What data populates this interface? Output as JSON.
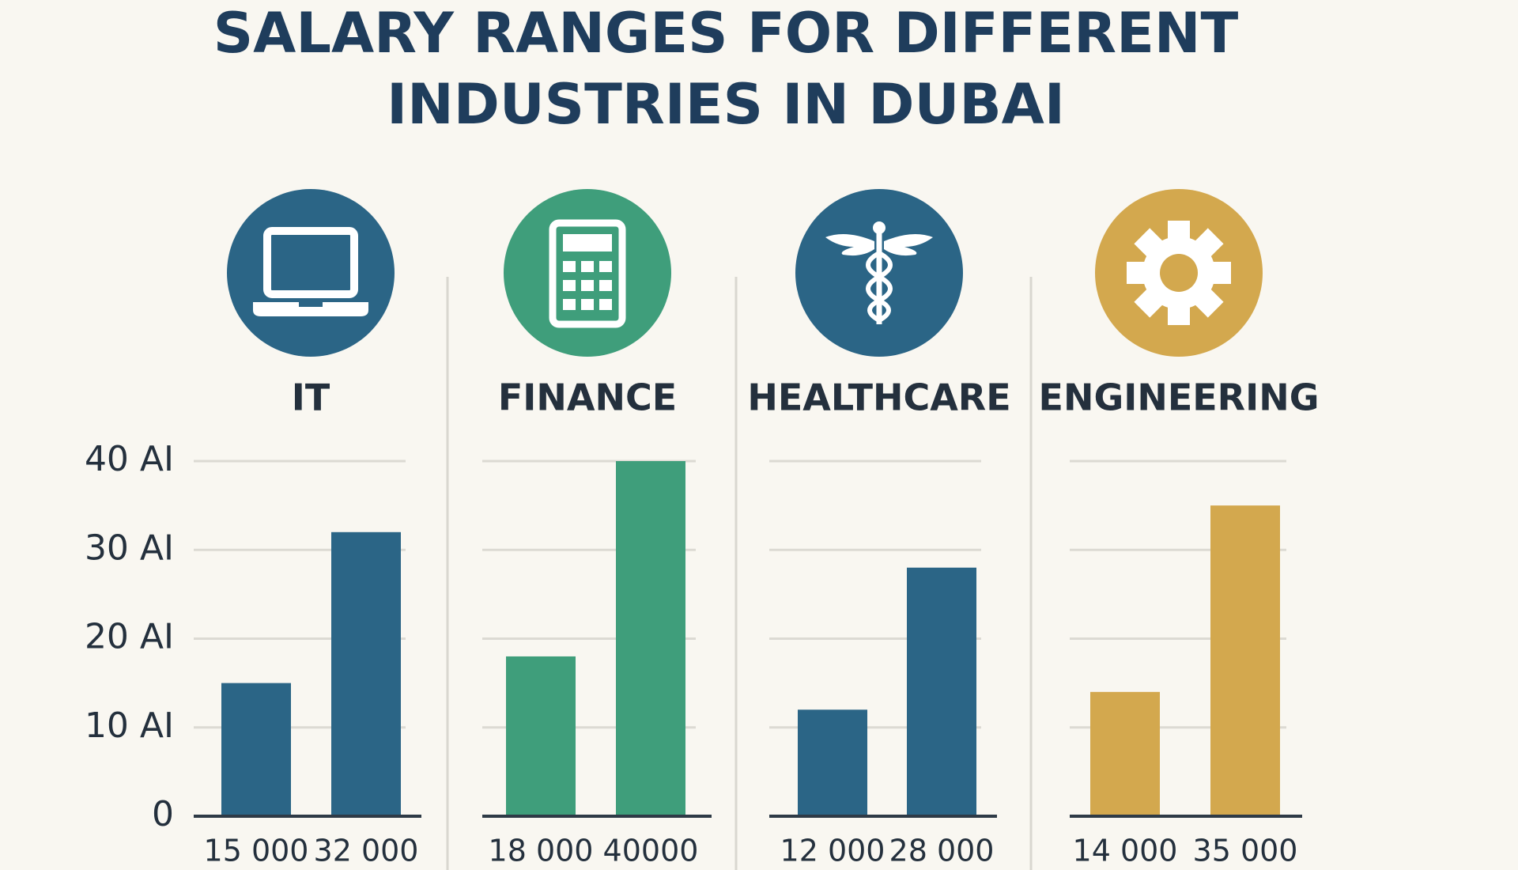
{
  "chart_data": {
    "type": "bar",
    "title": [
      "SALARY RANGES FOR DIFFERENT",
      "INDUSTRIES IN DUBAI"
    ],
    "categories": [
      "IT",
      "FINANCE",
      "HEALTHCARE",
      "ENGINEERING"
    ],
    "colors": [
      "#2b6586",
      "#3f9e7b",
      "#2b6586",
      "#d3a84e"
    ],
    "series": [
      {
        "values": [
          15,
          18,
          12,
          14
        ],
        "value_labels": [
          "15 000",
          "18 000",
          "12 000",
          "14 000"
        ]
      },
      {
        "values": [
          32,
          40,
          28,
          35
        ],
        "value_labels": [
          "32 000",
          "40000",
          "28 000",
          "35 000"
        ]
      }
    ],
    "ylim": [
      0,
      40
    ],
    "yticks": [
      0,
      {
        "value": 10,
        "label": "10 AI"
      },
      {
        "value": 20,
        "label": "20 AI"
      },
      {
        "value": 30,
        "label": "30 AI"
      },
      {
        "value": 40,
        "label": "40 AI"
      }
    ],
    "grid": true
  }
}
